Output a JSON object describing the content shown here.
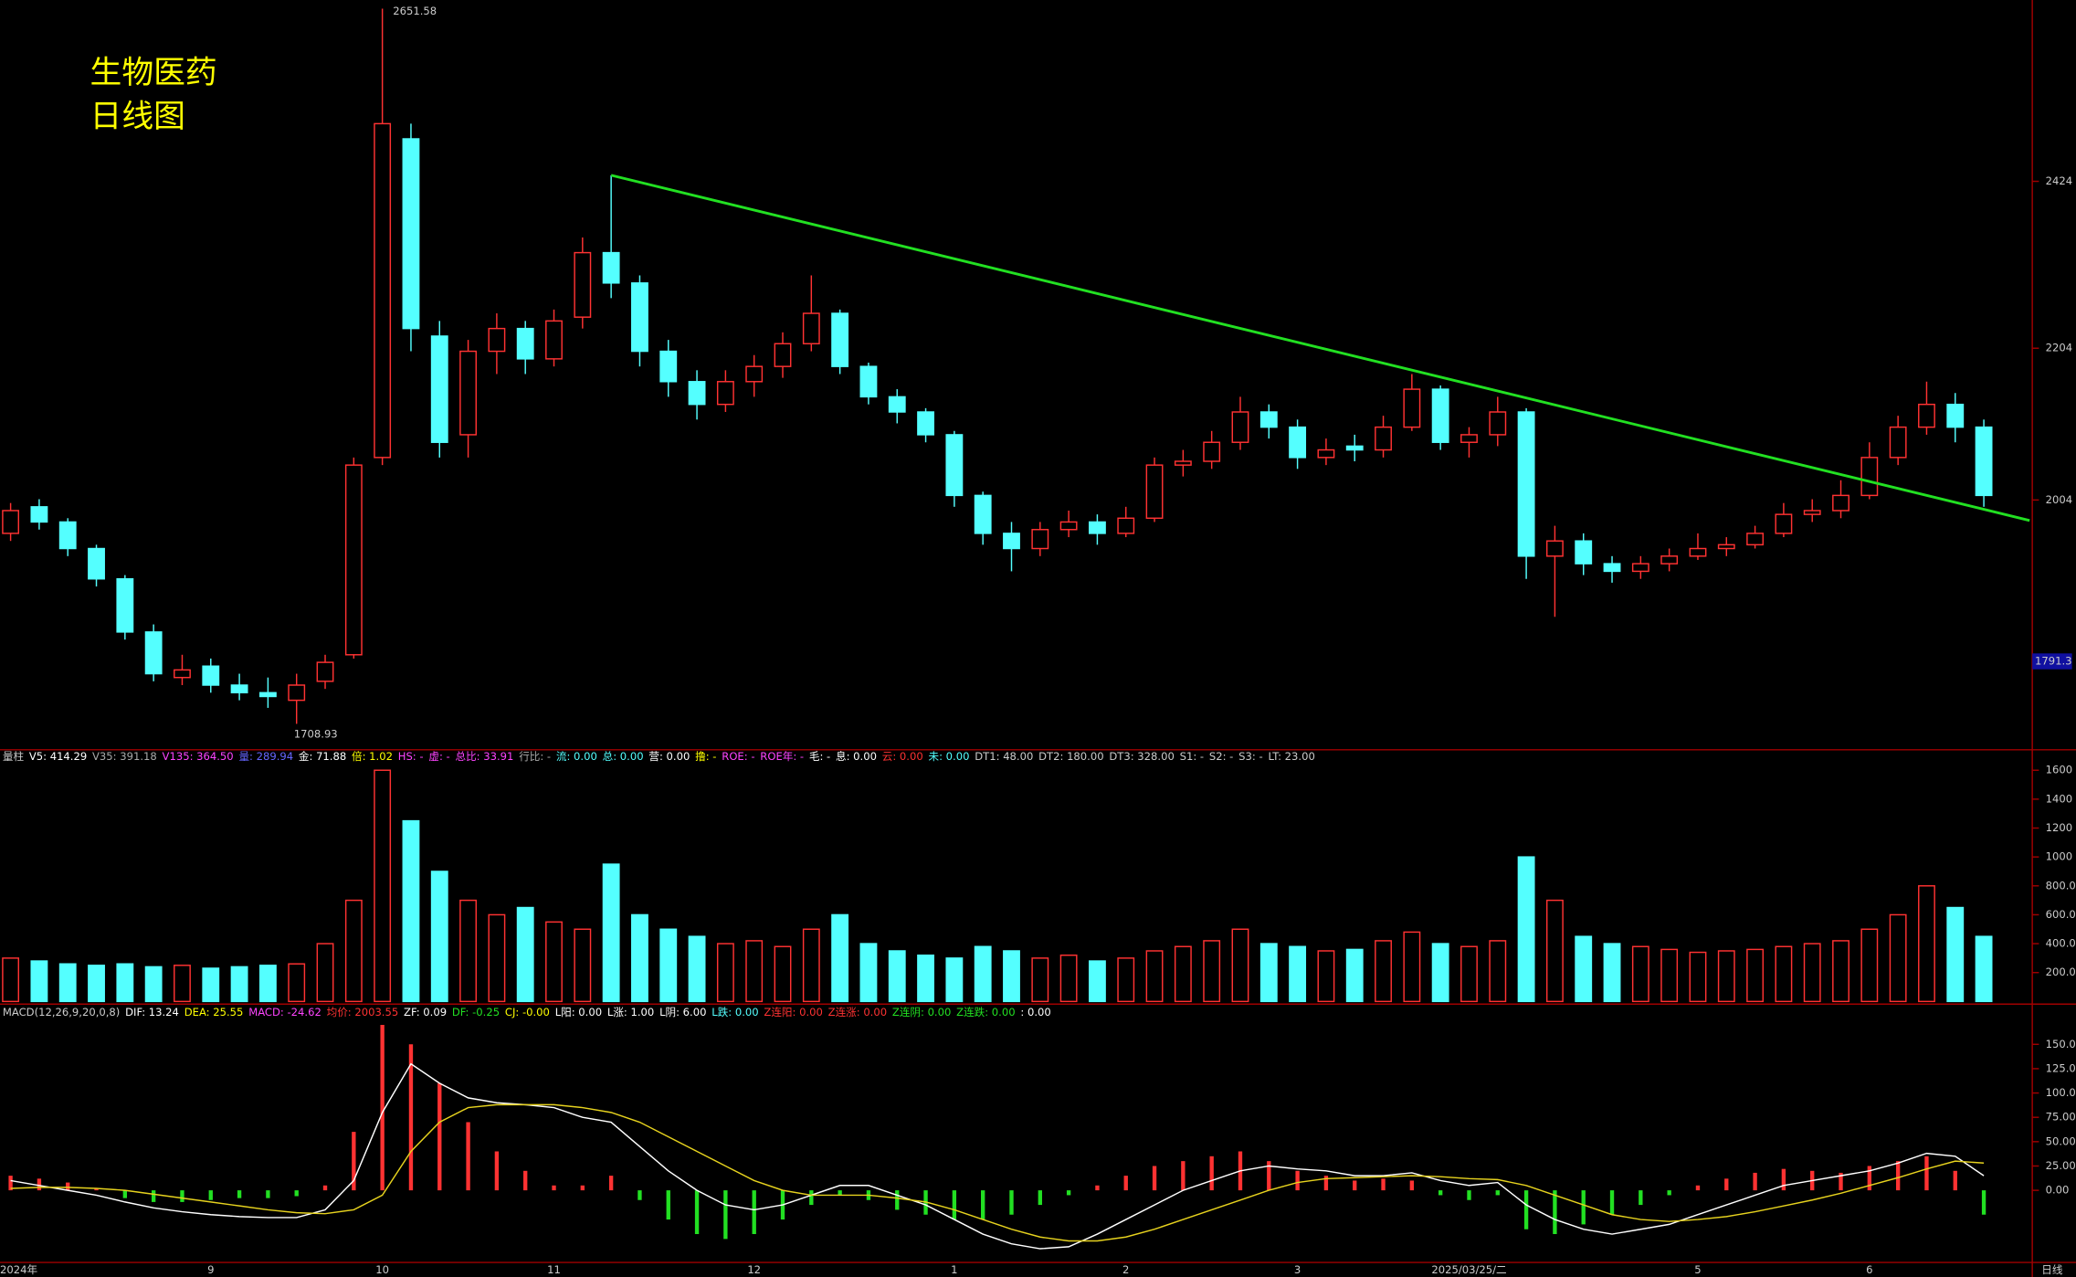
{
  "chart_data": [
    {
      "type": "candlestick",
      "title": "生物医药",
      "subtitle": "日线图",
      "categories": [
        "2024年",
        null,
        null,
        null,
        null,
        null,
        null,
        "9",
        null,
        null,
        null,
        null,
        null,
        "10",
        null,
        null,
        null,
        null,
        null,
        "11",
        null,
        null,
        null,
        null,
        null,
        null,
        "12",
        null,
        null,
        null,
        null,
        null,
        null,
        "1",
        null,
        null,
        null,
        null,
        null,
        "2",
        null,
        null,
        null,
        null,
        null,
        "3",
        null,
        null,
        null,
        null,
        null,
        "2025/03/25/二",
        null,
        null,
        null,
        null,
        null,
        null,
        null,
        "5",
        null,
        null,
        null,
        null,
        null,
        "6",
        null,
        null,
        null,
        null
      ],
      "open": [
        1960,
        1995,
        1975,
        1940,
        1900,
        1830,
        1770,
        1785,
        1760,
        1750,
        1740,
        1765,
        1800,
        2060,
        2480,
        2220,
        2090,
        2200,
        2230,
        2190,
        2245,
        2330,
        2290,
        2200,
        2160,
        2130,
        2160,
        2180,
        2210,
        2250,
        2180,
        2140,
        2120,
        2090,
        2010,
        1960,
        1940,
        1965,
        1975,
        1960,
        1980,
        2050,
        2055,
        2080,
        2120,
        2100,
        2060,
        2075,
        2070,
        2100,
        2150,
        2080,
        2090,
        2120,
        1930,
        1950,
        1920,
        1910,
        1920,
        1930,
        1940,
        1945,
        1960,
        1985,
        1990,
        2010,
        2060,
        2100,
        2130,
        2100
      ],
      "high": [
        2000,
        2005,
        1980,
        1945,
        1905,
        1840,
        1800,
        1795,
        1775,
        1770,
        1775,
        1800,
        2060,
        2651.58,
        2500,
        2240,
        2215,
        2250,
        2240,
        2255,
        2350,
        2432,
        2300,
        2215,
        2175,
        2175,
        2195,
        2225,
        2300,
        2255,
        2185,
        2150,
        2125,
        2095,
        2015,
        1975,
        1975,
        1990,
        1985,
        1995,
        2060,
        2070,
        2095,
        2140,
        2130,
        2110,
        2085,
        2090,
        2115,
        2170,
        2155,
        2100,
        2140,
        2125,
        1970,
        1960,
        1930,
        1930,
        1940,
        1960,
        1955,
        1970,
        2000,
        2005,
        2030,
        2080,
        2115,
        2160,
        2145,
        2110
      ],
      "low": [
        1950,
        1965,
        1930,
        1890,
        1820,
        1765,
        1760,
        1750,
        1740,
        1730,
        1708.93,
        1755,
        1795,
        2050,
        2200,
        2060,
        2060,
        2170,
        2170,
        2180,
        2230,
        2270,
        2180,
        2140,
        2110,
        2120,
        2140,
        2165,
        2200,
        2170,
        2130,
        2105,
        2080,
        1995,
        1945,
        1910,
        1930,
        1955,
        1945,
        1955,
        1975,
        2035,
        2045,
        2070,
        2085,
        2045,
        2050,
        2055,
        2060,
        2095,
        2070,
        2060,
        2075,
        1900,
        1850,
        1905,
        1895,
        1900,
        1910,
        1925,
        1930,
        1940,
        1955,
        1975,
        1980,
        2005,
        2050,
        2090,
        2080,
        1995
      ],
      "close": [
        1990,
        1975,
        1940,
        1900,
        1830,
        1775,
        1780,
        1760,
        1750,
        1745,
        1760,
        1790,
        2050,
        2500,
        2230,
        2080,
        2200,
        2230,
        2190,
        2240,
        2330,
        2290,
        2200,
        2160,
        2130,
        2160,
        2180,
        2210,
        2250,
        2180,
        2140,
        2120,
        2090,
        2010,
        1960,
        1940,
        1965,
        1975,
        1960,
        1980,
        2050,
        2055,
        2080,
        2120,
        2100,
        2060,
        2070,
        2070,
        2100,
        2150,
        2080,
        2090,
        2120,
        1930,
        1950,
        1920,
        1910,
        1920,
        1930,
        1940,
        1945,
        1960,
        1985,
        1990,
        2010,
        2060,
        2100,
        2130,
        2100,
        2010
      ],
      "up_color": "#ff3232",
      "down_color": "#54ffff",
      "ylim": [
        1680,
        2663
      ],
      "yticks": [
        2424,
        2204,
        2004
      ],
      "axis_marker": 1791.3,
      "trendline": {
        "color": "#22e022",
        "x": [
          21,
          70.6
        ],
        "y": [
          2432,
          1977
        ]
      },
      "period_label": "日线"
    },
    {
      "type": "bar",
      "header": [
        {
          "text": "量柱",
          "color": "#cccccc"
        },
        {
          "text": "V5: 414.29",
          "color": "#ffffff"
        },
        {
          "text": "V35: 391.18",
          "color": "#aaaaaa"
        },
        {
          "text": "V135: 364.50",
          "color": "#ff44ff"
        },
        {
          "text": "量: 289.94",
          "color": "#6666ff"
        },
        {
          "text": "金: 71.88",
          "color": "#ffffff"
        },
        {
          "text": "倍: 1.02",
          "color": "#ffff00"
        },
        {
          "text": "HS: -",
          "color": "#ff44ff"
        },
        {
          "text": "虚: -",
          "color": "#ff44ff"
        },
        {
          "text": "总比: 33.91",
          "color": "#ff44ff"
        },
        {
          "text": "行比: -",
          "color": "#aaaaaa"
        },
        {
          "text": "流: 0.00",
          "color": "#54ffff"
        },
        {
          "text": "总: 0.00",
          "color": "#54ffff"
        },
        {
          "text": "营: 0.00",
          "color": "#ffffff"
        },
        {
          "text": "撸: -",
          "color": "#ffff00"
        },
        {
          "text": "ROE: -",
          "color": "#ff44ff"
        },
        {
          "text": "ROE年: -",
          "color": "#ff44ff"
        },
        {
          "text": "毛: -",
          "color": "#ffffff"
        },
        {
          "text": "息: 0.00",
          "color": "#ffffff"
        },
        {
          "text": "云: 0.00",
          "color": "#ff3232"
        },
        {
          "text": "未: 0.00",
          "color": "#54ffff"
        },
        {
          "text": "DT1: 48.00",
          "color": "#cccccc"
        },
        {
          "text": "DT2: 180.00",
          "color": "#cccccc"
        },
        {
          "text": "DT3: 328.00",
          "color": "#cccccc"
        },
        {
          "text": "S1: -",
          "color": "#cccccc"
        },
        {
          "text": "S2: -",
          "color": "#cccccc"
        },
        {
          "text": "S3: -",
          "color": "#cccccc"
        },
        {
          "text": "LT: 23.00",
          "color": "#cccccc"
        }
      ],
      "values": [
        300,
        280,
        260,
        250,
        260,
        240,
        250,
        230,
        240,
        250,
        260,
        400,
        700,
        1600,
        1250,
        900,
        700,
        600,
        650,
        550,
        500,
        950,
        600,
        500,
        450,
        400,
        420,
        380,
        500,
        600,
        400,
        350,
        320,
        300,
        380,
        350,
        300,
        320,
        280,
        300,
        350,
        380,
        420,
        500,
        400,
        380,
        350,
        360,
        420,
        480,
        400,
        380,
        420,
        1000,
        700,
        450,
        400,
        380,
        360,
        340,
        350,
        360,
        380,
        400,
        420,
        500,
        600,
        800,
        650,
        450
      ],
      "ylim": [
        0,
        1650
      ],
      "yticks": [
        {
          "value": 200,
          "label": "200.0"
        },
        {
          "value": 400,
          "label": "400.0"
        },
        {
          "value": 600,
          "label": "600.0"
        },
        {
          "value": 800,
          "label": "800.0"
        },
        1000,
        1200,
        1400,
        1600
      ]
    },
    {
      "type": "macd",
      "header": [
        {
          "text": "MACD(12,26,9,20,0,8)",
          "color": "#cccccc"
        },
        {
          "text": "DIF: 13.24",
          "color": "#ffffff"
        },
        {
          "text": "DEA: 25.55",
          "color": "#ffff00"
        },
        {
          "text": "MACD: -24.62",
          "color": "#ff44ff"
        },
        {
          "text": "均价: 2003.55",
          "color": "#ff3232"
        },
        {
          "text": "ZF: 0.09",
          "color": "#ffffff"
        },
        {
          "text": "DF: -0.25",
          "color": "#22e022"
        },
        {
          "text": "CJ: -0.00",
          "color": "#ffff00"
        },
        {
          "text": "L阳: 0.00",
          "color": "#ffffff"
        },
        {
          "text": "L涨: 1.00",
          "color": "#ffffff"
        },
        {
          "text": "L阴: 6.00",
          "color": "#ffffff"
        },
        {
          "text": "L跌: 0.00",
          "color": "#54ffff"
        },
        {
          "text": "Z连阳: 0.00",
          "color": "#ff3232"
        },
        {
          "text": "Z连涨: 0.00",
          "color": "#ff3232"
        },
        {
          "text": "Z连阴: 0.00",
          "color": "#22e022"
        },
        {
          "text": "Z连跌: 0.00",
          "color": "#22e022"
        },
        {
          "text": ": 0.00",
          "color": "#ffffff"
        }
      ],
      "values": [
        15,
        12,
        8,
        2,
        -8,
        -12,
        -12,
        -10,
        -8,
        -8,
        -6,
        5,
        60,
        170,
        150,
        110,
        70,
        40,
        20,
        5,
        5,
        15,
        -10,
        -30,
        -45,
        -50,
        -45,
        -30,
        -15,
        -5,
        -10,
        -20,
        -25,
        -30,
        -30,
        -25,
        -15,
        -5,
        5,
        15,
        25,
        30,
        35,
        40,
        30,
        20,
        15,
        10,
        12,
        10,
        -5,
        -10,
        -5,
        -40,
        -45,
        -35,
        -25,
        -15,
        -5,
        5,
        12,
        18,
        22,
        20,
        18,
        25,
        30,
        35,
        20,
        -25
      ],
      "series": [
        {
          "name": "DIF",
          "color": "#ffffff",
          "values": [
            10,
            5,
            0,
            -5,
            -12,
            -18,
            -22,
            -25,
            -27,
            -28,
            -28,
            -20,
            10,
            80,
            130,
            110,
            95,
            90,
            88,
            85,
            75,
            70,
            45,
            20,
            0,
            -15,
            -20,
            -15,
            -5,
            5,
            5,
            -5,
            -15,
            -30,
            -45,
            -55,
            -60,
            -58,
            -45,
            -30,
            -15,
            0,
            10,
            20,
            25,
            22,
            20,
            15,
            15,
            18,
            10,
            5,
            8,
            -15,
            -30,
            -40,
            -45,
            -40,
            -35,
            -25,
            -15,
            -5,
            5,
            10,
            15,
            20,
            28,
            38,
            35,
            15
          ]
        },
        {
          "name": "DEA",
          "color": "#e6d21e",
          "values": [
            2,
            3,
            3,
            2,
            0,
            -4,
            -8,
            -12,
            -16,
            -20,
            -23,
            -24,
            -20,
            -5,
            40,
            70,
            85,
            88,
            88,
            88,
            85,
            80,
            70,
            55,
            40,
            25,
            10,
            0,
            -5,
            -5,
            -5,
            -8,
            -12,
            -20,
            -30,
            -40,
            -48,
            -52,
            -52,
            -48,
            -40,
            -30,
            -20,
            -10,
            0,
            8,
            12,
            13,
            14,
            15,
            14,
            12,
            11,
            5,
            -5,
            -15,
            -25,
            -30,
            -32,
            -30,
            -27,
            -22,
            -16,
            -10,
            -3,
            5,
            13,
            22,
            30,
            28
          ]
        }
      ],
      "pos_color": "#ff3232",
      "neg_color": "#22e022",
      "ylim": [
        -70,
        175
      ],
      "yticks": [
        {
          "value": 0,
          "label": "0.00"
        },
        {
          "value": 25,
          "label": "25.00"
        },
        {
          "value": 50,
          "label": "50.00"
        },
        {
          "value": 75,
          "label": "75.00"
        },
        {
          "value": 100,
          "label": "100.0"
        },
        {
          "value": 125,
          "label": "125.0"
        },
        {
          "value": 150,
          "label": "150.0"
        }
      ]
    }
  ]
}
